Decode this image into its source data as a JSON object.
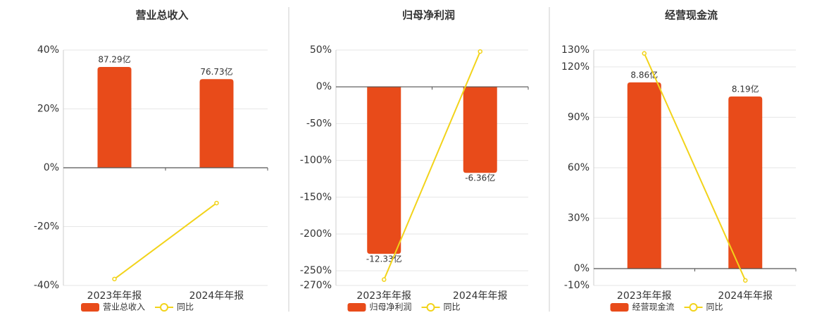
{
  "chart_data": [
    {
      "type": "bar",
      "title": "营业总收入",
      "categories": [
        "2023年年报",
        "2024年年报"
      ],
      "series": [
        {
          "name": "营业总收入",
          "color": "#e84b1a",
          "axis": "y2",
          "values": [
            87.29,
            76.73
          ],
          "value_labels": [
            "87.29亿",
            "76.73亿"
          ]
        },
        {
          "name": "同比",
          "color": "#f2d31a",
          "values": [
            -37.8,
            -12
          ]
        }
      ],
      "ylim": [
        -40,
        40
      ],
      "yticks": [
        {
          "value": -40,
          "label": "-40%"
        },
        {
          "value": -20,
          "label": "-20%"
        },
        {
          "value": 0,
          "label": "0%"
        },
        {
          "value": 20,
          "label": "20%"
        },
        {
          "value": 40,
          "label": "40%"
        }
      ],
      "y2lim": [
        -101.9,
        101.9
      ],
      "grid": true
    },
    {
      "type": "bar",
      "title": "归母净利润",
      "categories": [
        "2023年年报",
        "2024年年报"
      ],
      "series": [
        {
          "name": "归母净利润",
          "color": "#e84b1a",
          "axis": "y2",
          "values": [
            -12.33,
            -6.36
          ],
          "value_labels": [
            "-12.33亿",
            "-6.36亿"
          ]
        },
        {
          "name": "同比",
          "color": "#f2d31a",
          "values": [
            -262,
            48
          ]
        }
      ],
      "ylim": [
        -270,
        50
      ],
      "yticks": [
        {
          "value": -270,
          "label": "-270%"
        },
        {
          "value": -250,
          "label": "-250%"
        },
        {
          "value": -200,
          "label": "-200%"
        },
        {
          "value": -150,
          "label": "-150%"
        },
        {
          "value": -100,
          "label": "-100%"
        },
        {
          "value": -50,
          "label": "-50%"
        },
        {
          "value": 0,
          "label": "0%"
        },
        {
          "value": 50,
          "label": "50%"
        }
      ],
      "y2lim": [
        -14.66,
        2.69
      ],
      "grid": true
    },
    {
      "type": "bar",
      "title": "经营现金流",
      "categories": [
        "2023年年报",
        "2024年年报"
      ],
      "series": [
        {
          "name": "经营现金流",
          "color": "#e84b1a",
          "axis": "y2",
          "values": [
            8.86,
            8.19
          ],
          "value_labels": [
            "8.86亿",
            "8.19亿"
          ]
        },
        {
          "name": "同比",
          "color": "#f2d31a",
          "values": [
            128,
            -7
          ]
        }
      ],
      "ylim": [
        -10,
        130
      ],
      "yticks": [
        {
          "value": -10,
          "label": "-10%"
        },
        {
          "value": 0,
          "label": "0%"
        },
        {
          "value": 30,
          "label": "30%"
        },
        {
          "value": 60,
          "label": "60%"
        },
        {
          "value": 90,
          "label": "90%"
        },
        {
          "value": 120,
          "label": "120%"
        },
        {
          "value": 130,
          "label": "130%"
        }
      ],
      "y2lim": [
        -0.805,
        10.4
      ],
      "grid": true
    }
  ]
}
